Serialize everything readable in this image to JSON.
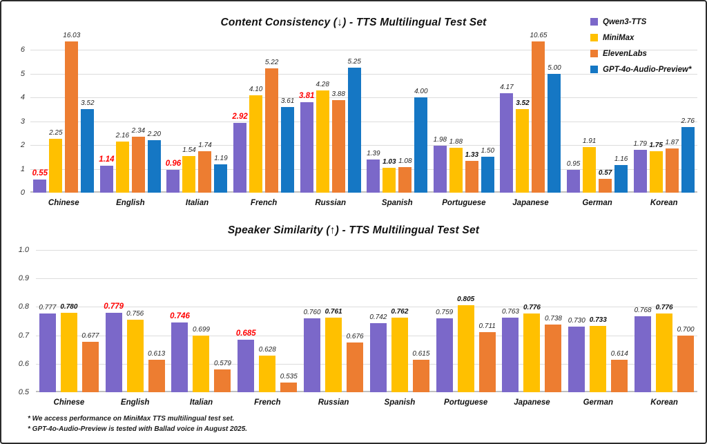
{
  "colors": {
    "qwen": "#7B68C9",
    "minimax": "#FFC000",
    "elevenlabs": "#ED7D31",
    "gpt4o": "#1577C4",
    "highlight_red": "#FF0000",
    "grid": "#DCDCDC",
    "text": "#111111"
  },
  "legend": {
    "position": "top-right",
    "items": [
      {
        "label": "Qwen3-TTS",
        "color": "#7B68C9"
      },
      {
        "label": "MiniMax",
        "color": "#FFC000"
      },
      {
        "label": "ElevenLabs",
        "color": "#ED7D31"
      },
      {
        "label": "GPT-4o-Audio-Preview*",
        "color": "#1577C4"
      }
    ]
  },
  "chart_data": [
    {
      "type": "bar",
      "title": "Content Consistency (↓) - TTS Multilingual Test Set",
      "xlabel": "",
      "ylabel": "",
      "ylim": [
        0,
        6.35
      ],
      "yticks": [
        0,
        1,
        2,
        3,
        4,
        5,
        6
      ],
      "ytick_labels": [
        "0",
        "1",
        "2",
        "3",
        "4",
        "5",
        "6"
      ],
      "grid": true,
      "clipped_note": "Bars for 16.03 and 10.65 exceed the visible axis and are clipped at the top",
      "categories": [
        "Chinese",
        "English",
        "Italian",
        "French",
        "Russian",
        "Spanish",
        "Portuguese",
        "Japanese",
        "German",
        "Korean"
      ],
      "series": [
        {
          "name": "Qwen3-TTS",
          "color_key": "qwen",
          "values": [
            0.55,
            1.14,
            0.96,
            2.92,
            3.81,
            1.39,
            1.98,
            4.17,
            0.95,
            1.79
          ],
          "labels": [
            "0.55",
            "1.14",
            "0.96",
            "2.92",
            "3.81",
            "1.39",
            "1.98",
            "4.17",
            "0.95",
            "1.79"
          ],
          "emphasis": [
            "red",
            "red",
            "red",
            "red",
            "red",
            "",
            "",
            "",
            "",
            ""
          ]
        },
        {
          "name": "MiniMax",
          "color_key": "minimax",
          "values": [
            2.25,
            2.16,
            1.54,
            4.1,
            4.28,
            1.03,
            1.88,
            3.52,
            1.91,
            1.75
          ],
          "labels": [
            "2.25",
            "2.16",
            "1.54",
            "4.10",
            "4.28",
            "1.03",
            "1.88",
            "3.52",
            "1.91",
            "1.75"
          ],
          "emphasis": [
            "",
            "",
            "",
            "",
            "",
            "bold",
            "",
            "bold",
            "",
            "bold"
          ]
        },
        {
          "name": "ElevenLabs",
          "color_key": "elevenlabs",
          "values": [
            16.03,
            2.34,
            1.74,
            5.22,
            3.88,
            1.08,
            1.33,
            10.65,
            0.57,
            1.87
          ],
          "labels": [
            "16.03",
            "2.34",
            "1.74",
            "5.22",
            "3.88",
            "1.08",
            "1.33",
            "10.65",
            "0.57",
            "1.87"
          ],
          "emphasis": [
            "",
            "",
            "",
            "",
            "",
            "",
            "bold",
            "",
            "bold",
            ""
          ]
        },
        {
          "name": "GPT-4o-Audio-Preview*",
          "color_key": "gpt4o",
          "values": [
            3.52,
            2.2,
            1.19,
            3.61,
            5.25,
            4.0,
            1.5,
            5.0,
            1.16,
            2.76
          ],
          "labels": [
            "3.52",
            "2.20",
            "1.19",
            "3.61",
            "5.25",
            "4.00",
            "1.50",
            "5.00",
            "1.16",
            "2.76"
          ],
          "emphasis": [
            "",
            "",
            "",
            "",
            "",
            "",
            "",
            "",
            "",
            ""
          ]
        }
      ]
    },
    {
      "type": "bar",
      "title": "Speaker Similarity (↑) - TTS Multilingual Test Set",
      "xlabel": "",
      "ylabel": "",
      "ylim": [
        0.5,
        1.0
      ],
      "yticks": [
        0.5,
        0.6,
        0.7,
        0.8,
        0.9,
        1.0
      ],
      "ytick_labels": [
        "0.5",
        "0.6",
        "0.7",
        "0.8",
        "0.9",
        "1.0"
      ],
      "grid": true,
      "categories": [
        "Chinese",
        "English",
        "Italian",
        "French",
        "Russian",
        "Spanish",
        "Portuguese",
        "Japanese",
        "German",
        "Korean"
      ],
      "series": [
        {
          "name": "Qwen3-TTS",
          "color_key": "qwen",
          "values": [
            0.777,
            0.779,
            0.746,
            0.685,
            0.76,
            0.742,
            0.759,
            0.763,
            0.73,
            0.768
          ],
          "labels": [
            "0.777",
            "0.779",
            "0.746",
            "0.685",
            "0.760",
            "0.742",
            "0.759",
            "0.763",
            "0.730",
            "0.768"
          ],
          "emphasis": [
            "",
            "red",
            "red",
            "red",
            "",
            "",
            "",
            "",
            "",
            ""
          ]
        },
        {
          "name": "MiniMax",
          "color_key": "minimax",
          "values": [
            0.78,
            0.756,
            0.699,
            0.628,
            0.761,
            0.762,
            0.805,
            0.776,
            0.733,
            0.776
          ],
          "labels": [
            "0.780",
            "0.756",
            "0.699",
            "0.628",
            "0.761",
            "0.762",
            "0.805",
            "0.776",
            "0.733",
            "0.776"
          ],
          "emphasis": [
            "bold",
            "",
            "",
            "",
            "bold",
            "bold",
            "bold",
            "bold",
            "bold",
            "bold"
          ]
        },
        {
          "name": "ElevenLabs",
          "color_key": "elevenlabs",
          "values": [
            0.677,
            0.613,
            0.579,
            0.535,
            0.676,
            0.615,
            0.711,
            0.738,
            0.614,
            0.7
          ],
          "labels": [
            "0.677",
            "0.613",
            "0.579",
            "0.535",
            "0.676",
            "0.615",
            "0.711",
            "0.738",
            "0.614",
            "0.700"
          ],
          "emphasis": [
            "",
            "",
            "",
            "",
            "",
            "",
            "",
            "",
            "",
            ""
          ]
        }
      ]
    }
  ],
  "footnotes": [
    "* We access performance on MiniMax TTS multilingual test set.",
    "* GPT-4o-Audio-Preview is tested with Ballad voice in August 2025."
  ]
}
